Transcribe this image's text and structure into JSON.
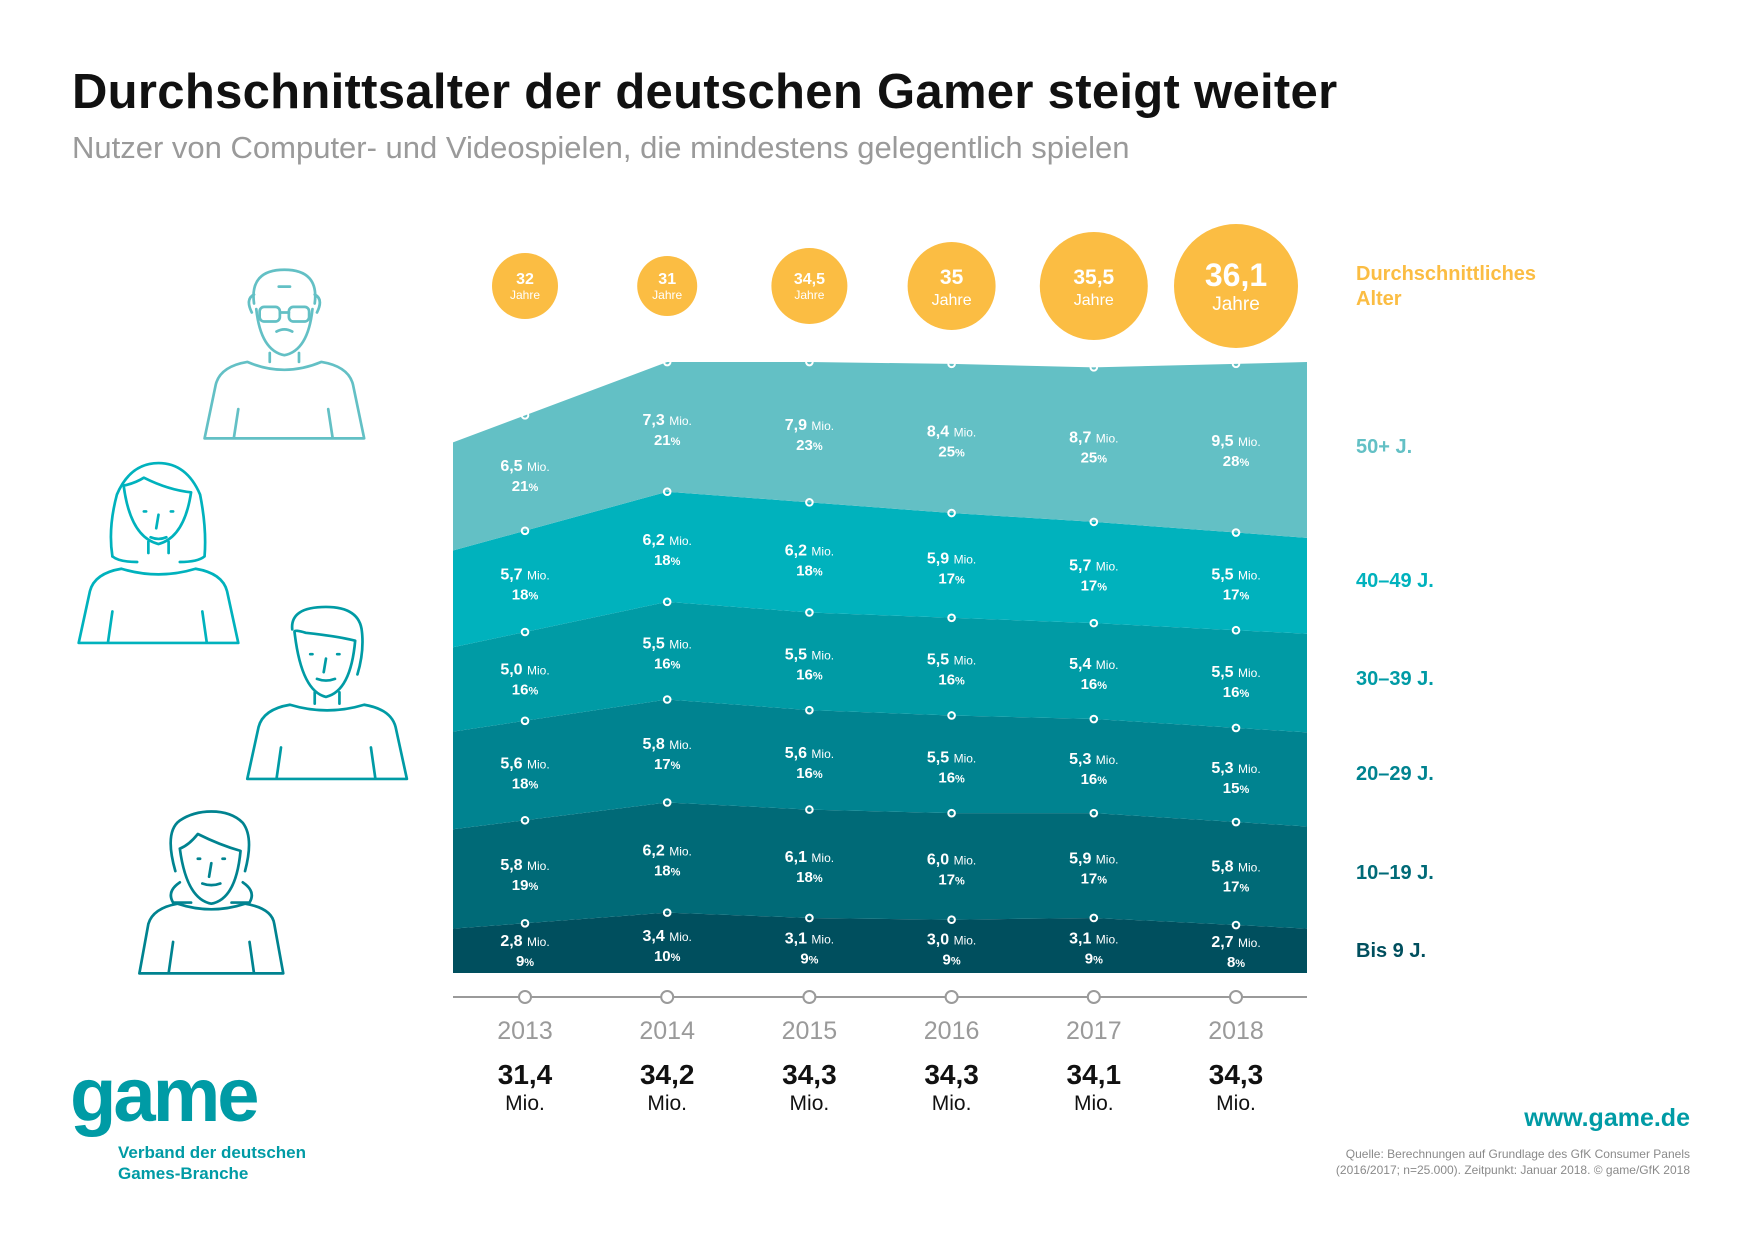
{
  "header": {
    "title": "Durchschnittsalter der deutschen Gamer steigt weiter",
    "subtitle": "Nutzer von Computer- und Videospielen, die mindestens gelegentlich spielen"
  },
  "legend": {
    "avg_age_label_line1": "Durchschnittliches",
    "avg_age_label_line2": "Alter",
    "age_unit": "Jahre",
    "mio_unit": "Mio.",
    "percent_sign": "%"
  },
  "chart_data": {
    "type": "area",
    "stacked": true,
    "title": "Durchschnittsalter der deutschen Gamer steigt weiter",
    "subtitle": "Nutzer von Computer- und Videospielen, die mindestens gelegentlich spielen",
    "unit": "Mio.",
    "categories": [
      "2013",
      "2014",
      "2015",
      "2016",
      "2017",
      "2018"
    ],
    "series": [
      {
        "name": "Bis 9 J.",
        "values": [
          2.8,
          3.4,
          3.1,
          3.0,
          3.1,
          2.7
        ],
        "percent": [
          9,
          10,
          9,
          9,
          9,
          8
        ],
        "color": "#004f5e"
      },
      {
        "name": "10–19 J.",
        "values": [
          5.8,
          6.2,
          6.1,
          6.0,
          5.9,
          5.8
        ],
        "percent": [
          19,
          18,
          18,
          17,
          17,
          17
        ],
        "color": "#006a77"
      },
      {
        "name": "20–29 J.",
        "values": [
          5.6,
          5.8,
          5.6,
          5.5,
          5.3,
          5.3
        ],
        "percent": [
          18,
          17,
          16,
          16,
          16,
          15
        ],
        "color": "#008390"
      },
      {
        "name": "30–39 J.",
        "values": [
          5.0,
          5.5,
          5.5,
          5.5,
          5.4,
          5.5
        ],
        "percent": [
          16,
          16,
          16,
          16,
          16,
          16
        ],
        "color": "#009ba5"
      },
      {
        "name": "40–49 J.",
        "values": [
          5.7,
          6.2,
          6.2,
          5.9,
          5.7,
          5.5
        ],
        "percent": [
          18,
          18,
          18,
          17,
          17,
          17
        ],
        "color": "#00b2bd"
      },
      {
        "name": "50+ J.",
        "values": [
          6.5,
          7.3,
          7.9,
          8.4,
          8.7,
          9.5
        ],
        "percent": [
          21,
          21,
          23,
          25,
          25,
          28
        ],
        "color": "#63c0c5"
      }
    ],
    "totals": [
      31.4,
      34.2,
      34.3,
      34.3,
      34.1,
      34.3
    ],
    "average_age": [
      32,
      31,
      34.5,
      35,
      35.5,
      36.1
    ],
    "average_age_color": "#fbbd43",
    "axis_color": "#9a9a9a",
    "legend_placement": "right"
  },
  "footer": {
    "logo_text": "game",
    "logo_sub_line1": "Verband der deutschen",
    "logo_sub_line2": "Games-Branche",
    "website": "www.game.de",
    "source_line1": "Quelle: Berechnungen auf Grundlage des GfK Consumer Panels",
    "source_line2": "(2016/2017; n=25.000). Zeitpunkt: Januar 2018. © game/GfK 2018"
  },
  "icons": [
    "senior-person-icon",
    "woman-person-icon",
    "young-man-icon",
    "girl-person-icon"
  ]
}
